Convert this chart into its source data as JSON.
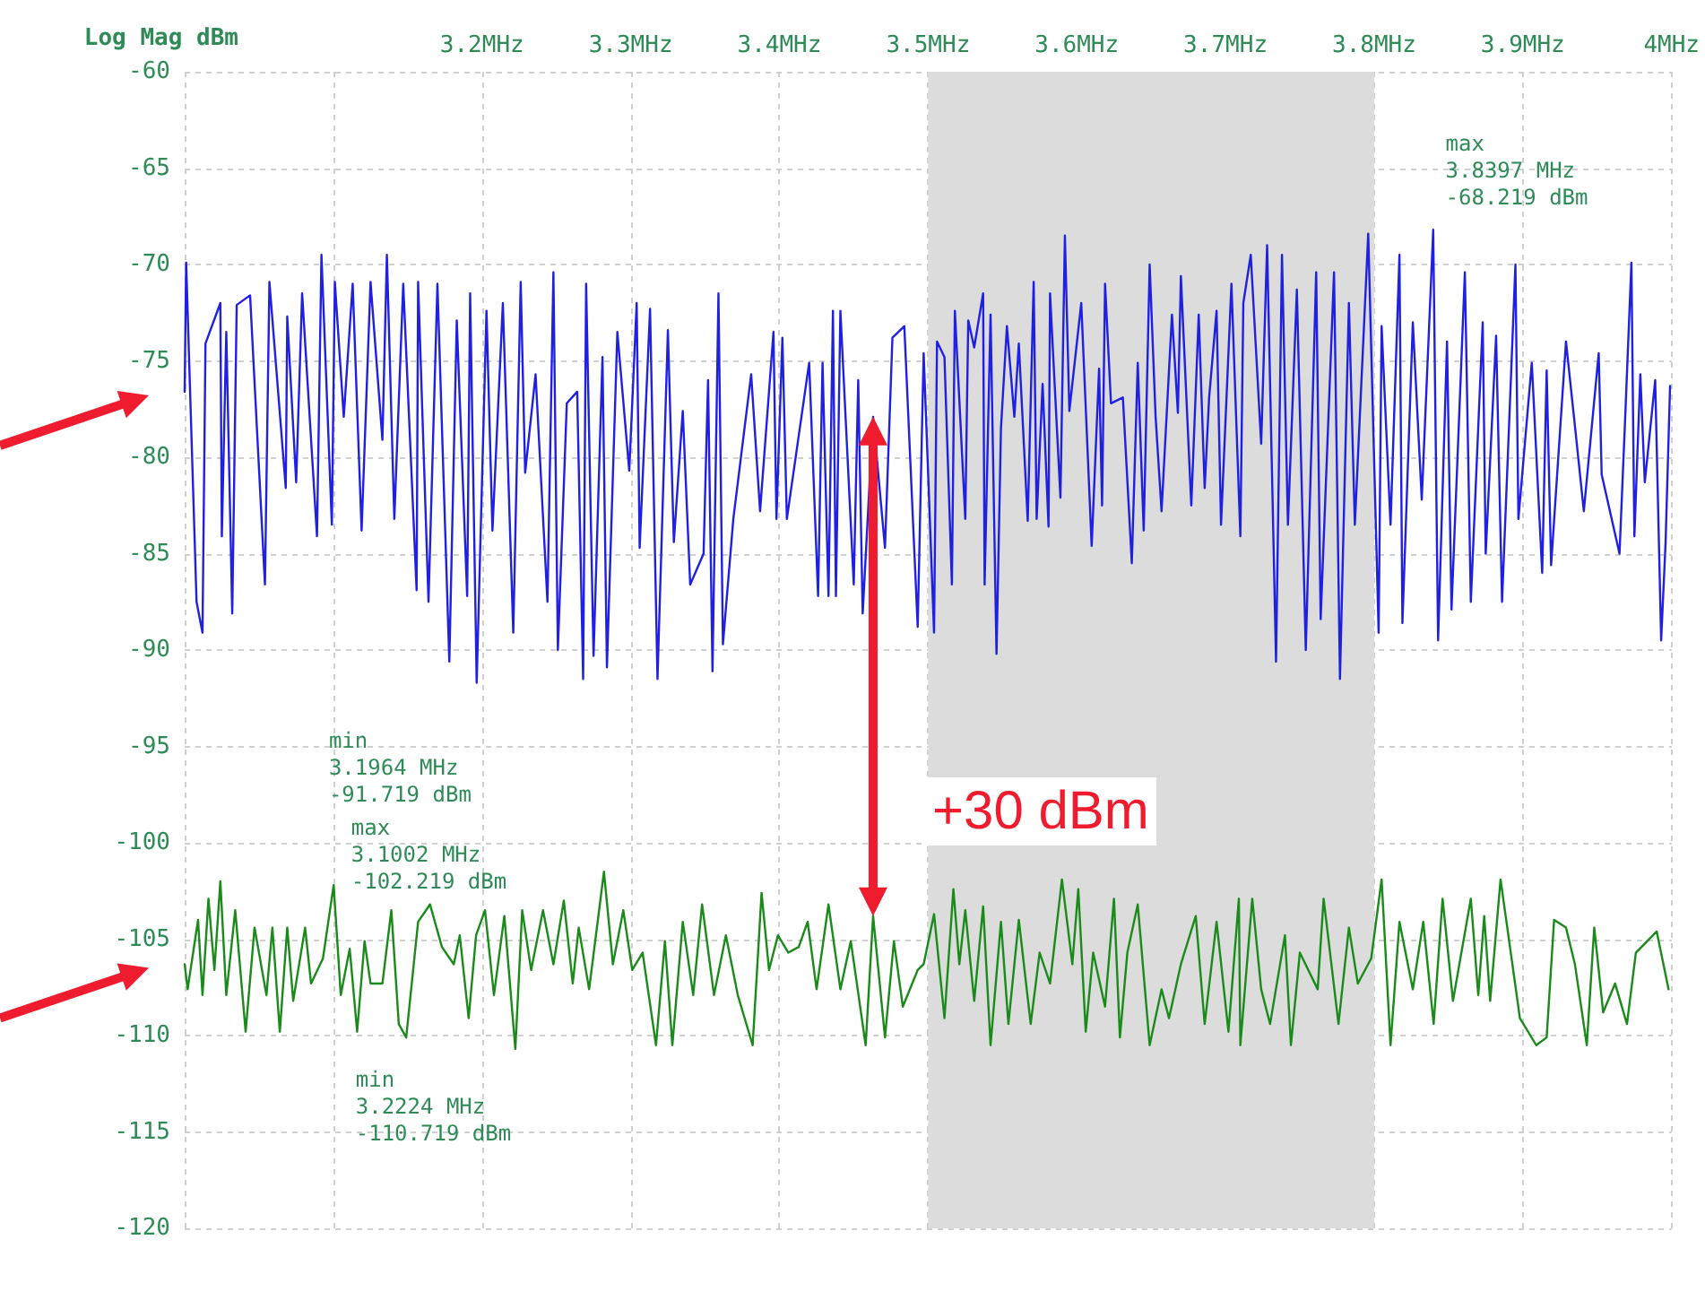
{
  "chart_data": {
    "type": "line",
    "ylabel": "Log Mag dBm",
    "xlim": [
      3.0,
      4.0
    ],
    "xticks": [
      {
        "value": 3.0,
        "label": null
      },
      {
        "value": 3.1,
        "label": null
      },
      {
        "value": 3.2,
        "label": "3.2MHz"
      },
      {
        "value": 3.3,
        "label": "3.3MHz"
      },
      {
        "value": 3.4,
        "label": "3.4MHz"
      },
      {
        "value": 3.5,
        "label": "3.5MHz"
      },
      {
        "value": 3.6,
        "label": "3.6MHz"
      },
      {
        "value": 3.7,
        "label": "3.7MHz"
      },
      {
        "value": 3.8,
        "label": "3.8MHz"
      },
      {
        "value": 3.9,
        "label": "3.9MHz"
      },
      {
        "value": 4.0,
        "label": "4MHz"
      }
    ],
    "ylim": [
      -120,
      -60
    ],
    "yticks": [
      -120,
      -115,
      -110,
      -105,
      -100,
      -95,
      -90,
      -85,
      -80,
      -75,
      -70,
      -65,
      -60
    ],
    "grid": true,
    "marker": "none",
    "line_style": "solid",
    "bands": [
      {
        "axis": "x",
        "from": 3.5,
        "to": 3.8,
        "color": "#dcdcdc"
      }
    ],
    "series": [
      {
        "color": "#2020e0",
        "x": [
          3.0,
          3.001,
          3.008,
          3.012,
          3.014,
          3.024,
          3.025,
          3.028,
          3.032,
          3.035,
          3.044,
          3.054,
          3.057,
          3.068,
          3.069,
          3.075,
          3.079,
          3.089,
          3.092,
          3.099,
          3.101,
          3.107,
          3.113,
          3.119,
          3.125,
          3.133,
          3.136,
          3.141,
          3.147,
          3.156,
          3.157,
          3.164,
          3.17,
          3.178,
          3.183,
          3.19,
          3.192,
          3.1964,
          3.203,
          3.207,
          3.214,
          3.221,
          3.226,
          3.229,
          3.236,
          3.244,
          3.248,
          3.251,
          3.257,
          3.264,
          3.268,
          3.27,
          3.275,
          3.281,
          3.284,
          3.291,
          3.299,
          3.304,
          3.306,
          3.313,
          3.318,
          3.325,
          3.329,
          3.335,
          3.34,
          3.349,
          3.352,
          3.355,
          3.359,
          3.362,
          3.369,
          3.381,
          3.387,
          3.396,
          3.398,
          3.402,
          3.405,
          3.42,
          3.426,
          3.429,
          3.433,
          3.436,
          3.438,
          3.441,
          3.45,
          3.453,
          3.456,
          3.463,
          3.471,
          3.476,
          3.484,
          3.493,
          3.497,
          3.504,
          3.506,
          3.511,
          3.516,
          3.518,
          3.525,
          3.527,
          3.531,
          3.537,
          3.538,
          3.542,
          3.546,
          3.549,
          3.553,
          3.558,
          3.561,
          3.567,
          3.571,
          3.573,
          3.577,
          3.581,
          3.582,
          3.589,
          3.592,
          3.595,
          3.603,
          3.61,
          3.615,
          3.617,
          3.619,
          3.623,
          3.631,
          3.637,
          3.641,
          3.645,
          3.649,
          3.653,
          3.657,
          3.664,
          3.668,
          3.67,
          3.677,
          3.682,
          3.686,
          3.689,
          3.694,
          3.697,
          3.704,
          3.71,
          3.712,
          3.717,
          3.724,
          3.728,
          3.734,
          3.738,
          3.742,
          3.748,
          3.754,
          3.761,
          3.764,
          3.773,
          3.777,
          3.783,
          3.787,
          3.796,
          3.803,
          3.805,
          3.811,
          3.817,
          3.819,
          3.826,
          3.832,
          3.8397,
          3.843,
          3.849,
          3.852,
          3.861,
          3.865,
          3.873,
          3.875,
          3.882,
          3.886,
          3.895,
          3.897,
          3.906,
          3.913,
          3.916,
          3.919,
          3.929,
          3.936,
          3.941,
          3.951,
          3.953,
          3.965,
          3.969,
          3.973,
          3.975,
          3.979,
          3.982,
          3.989,
          3.993,
          3.996,
          3.999
        ],
        "values": [
          -76.6,
          -69.9,
          -87.5,
          -89.1,
          -74.1,
          -72.0,
          -84.1,
          -73.5,
          -88.1,
          -72.1,
          -71.6,
          -86.6,
          -70.9,
          -81.6,
          -72.7,
          -81.3,
          -71.5,
          -84.1,
          -69.5,
          -83.5,
          -70.9,
          -77.9,
          -71.0,
          -83.8,
          -70.9,
          -79.1,
          -69.5,
          -83.2,
          -71.0,
          -86.9,
          -70.9,
          -87.5,
          -71.0,
          -90.6,
          -72.9,
          -87.2,
          -71.5,
          -91.7,
          -72.4,
          -83.8,
          -72.0,
          -89.1,
          -70.9,
          -80.8,
          -75.7,
          -87.5,
          -70.4,
          -90.0,
          -77.2,
          -76.6,
          -91.5,
          -71.0,
          -90.3,
          -74.8,
          -90.9,
          -73.5,
          -80.7,
          -72.0,
          -84.7,
          -72.3,
          -91.5,
          -73.4,
          -84.4,
          -77.6,
          -86.6,
          -85.0,
          -76.0,
          -91.1,
          -71.5,
          -89.7,
          -83.2,
          -75.7,
          -82.8,
          -73.5,
          -83.2,
          -73.8,
          -83.2,
          -75.1,
          -87.2,
          -75.1,
          -87.2,
          -72.4,
          -87.2,
          -72.4,
          -86.6,
          -76.0,
          -88.1,
          -77.9,
          -84.7,
          -73.8,
          -73.2,
          -88.8,
          -74.6,
          -89.1,
          -74.0,
          -74.8,
          -86.6,
          -72.4,
          -83.2,
          -72.9,
          -74.3,
          -71.5,
          -86.6,
          -72.6,
          -90.2,
          -78.5,
          -73.2,
          -77.9,
          -74.1,
          -83.3,
          -70.9,
          -83.2,
          -76.2,
          -83.6,
          -71.5,
          -82.1,
          -68.5,
          -77.6,
          -72.0,
          -84.6,
          -75.4,
          -82.5,
          -71.0,
          -77.2,
          -76.9,
          -85.5,
          -75.1,
          -83.8,
          -70.0,
          -77.9,
          -82.8,
          -72.6,
          -77.7,
          -70.6,
          -82.5,
          -72.6,
          -81.6,
          -76.9,
          -72.4,
          -83.5,
          -71.0,
          -84.1,
          -72.0,
          -69.5,
          -79.3,
          -69.0,
          -90.6,
          -69.5,
          -83.5,
          -71.3,
          -90.0,
          -70.4,
          -88.4,
          -70.4,
          -91.5,
          -72.0,
          -83.5,
          -68.4,
          -89.1,
          -73.2,
          -83.5,
          -69.5,
          -88.6,
          -73.0,
          -82.2,
          -68.2,
          -89.5,
          -74.0,
          -87.9,
          -70.4,
          -87.5,
          -73.0,
          -85.0,
          -73.7,
          -87.5,
          -70.0,
          -83.2,
          -75.1,
          -86.0,
          -75.5,
          -85.6,
          -74.0,
          -79.1,
          -82.8,
          -74.6,
          -80.9,
          -85.0,
          -77.6,
          -69.9,
          -84.1,
          -75.7,
          -81.3,
          -76.0,
          -89.5,
          -84.4,
          -76.3
        ]
      },
      {
        "color": "#1a8a1a",
        "x": [
          3.0,
          3.002,
          3.009,
          3.012,
          3.016,
          3.02,
          3.024,
          3.028,
          3.034,
          3.041,
          3.047,
          3.055,
          3.059,
          3.064,
          3.069,
          3.073,
          3.081,
          3.085,
          3.093,
          3.1002,
          3.105,
          3.111,
          3.116,
          3.121,
          3.125,
          3.133,
          3.139,
          3.144,
          3.149,
          3.157,
          3.165,
          3.173,
          3.181,
          3.185,
          3.191,
          3.196,
          3.202,
          3.208,
          3.215,
          3.2224,
          3.227,
          3.233,
          3.241,
          3.248,
          3.255,
          3.261,
          3.265,
          3.272,
          3.282,
          3.288,
          3.295,
          3.301,
          3.308,
          3.317,
          3.323,
          3.328,
          3.335,
          3.342,
          3.348,
          3.356,
          3.364,
          3.372,
          3.382,
          3.388,
          3.393,
          3.399,
          3.406,
          3.413,
          3.419,
          3.425,
          3.433,
          3.441,
          3.448,
          3.458,
          3.463,
          3.471,
          3.477,
          3.483,
          3.493,
          3.497,
          3.504,
          3.511,
          3.517,
          3.521,
          3.525,
          3.531,
          3.537,
          3.542,
          3.549,
          3.554,
          3.561,
          3.569,
          3.575,
          3.582,
          3.59,
          3.597,
          3.601,
          3.606,
          3.611,
          3.619,
          3.625,
          3.629,
          3.634,
          3.641,
          3.649,
          3.657,
          3.662,
          3.67,
          3.68,
          3.686,
          3.694,
          3.702,
          3.709,
          3.71,
          3.718,
          3.724,
          3.73,
          3.74,
          3.744,
          3.75,
          3.762,
          3.766,
          3.776,
          3.783,
          3.789,
          3.798,
          3.805,
          3.811,
          3.817,
          3.826,
          3.833,
          3.84,
          3.846,
          3.853,
          3.865,
          3.87,
          3.874,
          3.878,
          3.885,
          3.898,
          3.909,
          3.916,
          3.921,
          3.929,
          3.935,
          3.943,
          3.948,
          3.954,
          3.962,
          3.97,
          3.976,
          3.99,
          3.998
        ],
        "values": [
          -106.3,
          -107.6,
          -104.0,
          -107.9,
          -102.9,
          -106.6,
          -102.0,
          -107.9,
          -103.5,
          -109.8,
          -104.4,
          -107.9,
          -104.4,
          -109.8,
          -104.4,
          -108.2,
          -104.4,
          -107.3,
          -106.0,
          -102.2,
          -107.9,
          -105.5,
          -109.8,
          -105.1,
          -107.3,
          -107.3,
          -103.5,
          -109.4,
          -110.1,
          -104.1,
          -103.2,
          -105.4,
          -106.3,
          -104.8,
          -109.1,
          -104.8,
          -103.5,
          -107.9,
          -103.8,
          -110.7,
          -103.5,
          -106.6,
          -103.5,
          -106.3,
          -103.0,
          -107.3,
          -104.4,
          -107.6,
          -101.5,
          -106.3,
          -103.5,
          -106.6,
          -105.7,
          -110.5,
          -105.1,
          -110.5,
          -104.1,
          -107.9,
          -103.2,
          -107.9,
          -104.8,
          -107.9,
          -110.5,
          -102.6,
          -106.6,
          -104.8,
          -105.7,
          -105.4,
          -104.1,
          -107.6,
          -103.2,
          -107.6,
          -105.1,
          -110.5,
          -103.8,
          -110.1,
          -105.1,
          -108.5,
          -106.6,
          -106.3,
          -103.7,
          -109.1,
          -102.4,
          -106.3,
          -103.5,
          -108.2,
          -103.3,
          -110.5,
          -104.1,
          -109.4,
          -104.0,
          -109.4,
          -105.7,
          -107.3,
          -101.9,
          -106.3,
          -102.4,
          -109.8,
          -105.7,
          -108.5,
          -102.9,
          -110.1,
          -105.7,
          -103.2,
          -110.5,
          -107.6,
          -109.1,
          -106.3,
          -103.8,
          -109.4,
          -104.1,
          -109.8,
          -102.9,
          -110.5,
          -102.9,
          -107.6,
          -109.4,
          -104.8,
          -110.5,
          -105.7,
          -107.6,
          -102.9,
          -109.4,
          -104.4,
          -107.3,
          -106.0,
          -101.9,
          -110.5,
          -104.1,
          -107.6,
          -104.1,
          -109.4,
          -102.9,
          -108.2,
          -102.9,
          -107.9,
          -103.8,
          -108.2,
          -101.9,
          -109.1,
          -110.5,
          -110.1,
          -104.0,
          -104.4,
          -106.3,
          -110.5,
          -104.4,
          -108.8,
          -107.3,
          -109.4,
          -105.7,
          -104.6,
          -107.6
        ]
      }
    ],
    "annotations": [
      "max\n3.8397 MHz\n-68.219 dBm",
      "min\n3.1964 MHz\n-91.719 dBm",
      "max\n3.1002 MHz\n-102.219 dBm",
      "min\n3.2224 MHz\n-110.719 dBm",
      "+30 dBm"
    ]
  }
}
